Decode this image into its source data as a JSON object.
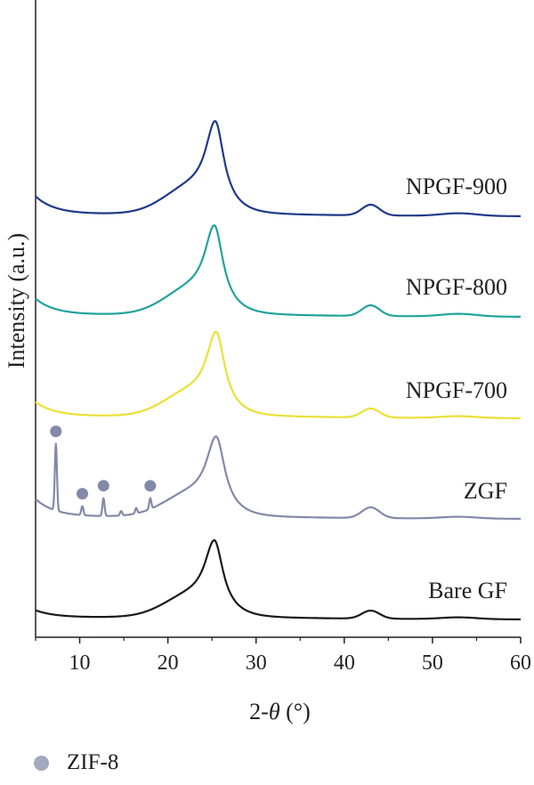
{
  "chart_data": {
    "type": "line",
    "title": "",
    "xlabel_prefix": "2-",
    "xlabel_symbol": "θ",
    "xlabel_unit": " (°)",
    "ylabel": "Intensity (a.u.)",
    "xlim": [
      5,
      60
    ],
    "x_ticks": [
      10,
      20,
      30,
      40,
      50,
      60
    ],
    "y_ticks_shown": false,
    "grid": false,
    "series": [
      {
        "name": "NPGF-900",
        "color": "#1f3a8a",
        "offset": 4,
        "peaks": [
          [
            25.4,
            1.15
          ],
          [
            43.0,
            0.12
          ],
          [
            53.0,
            0.03
          ]
        ],
        "background": 0.2,
        "end_level": 0.02
      },
      {
        "name": "NPGF-800",
        "color": "#21a39c",
        "offset": 3,
        "peaks": [
          [
            25.3,
            1.1
          ],
          [
            43.0,
            0.12
          ],
          [
            53.0,
            0.03
          ]
        ],
        "background": 0.18,
        "end_level": 0.02
      },
      {
        "name": "NPGF-700",
        "color": "#ebe035",
        "offset": 2,
        "peaks": [
          [
            25.5,
            1.05
          ],
          [
            43.0,
            0.1
          ],
          [
            53.0,
            0.02
          ]
        ],
        "background": 0.16,
        "end_level": 0.02
      },
      {
        "name": "ZGF",
        "color": "#8389a8",
        "offset": 1,
        "peaks": [
          [
            25.5,
            1.0
          ],
          [
            43.0,
            0.12
          ],
          [
            53.0,
            0.02
          ]
        ],
        "background": 0.2,
        "end_level": 0.02,
        "zif_peaks": [
          [
            7.3,
            0.75
          ],
          [
            10.3,
            0.1
          ],
          [
            12.7,
            0.2
          ],
          [
            14.7,
            0.05
          ],
          [
            16.4,
            0.06
          ],
          [
            18.0,
            0.12
          ]
        ]
      },
      {
        "name": "Bare GF",
        "color": "#1a1a1a",
        "offset": 0,
        "peaks": [
          [
            25.3,
            0.95
          ],
          [
            43.0,
            0.09
          ],
          [
            53.0,
            0.02
          ]
        ],
        "background": 0.08,
        "end_level": 0.02
      }
    ],
    "markers": [
      {
        "label": "ZIF-8",
        "series": "ZGF",
        "x": [
          7.3,
          10.3,
          12.7,
          18.0
        ],
        "color": "#8389a8"
      }
    ],
    "legend": {
      "label": "ZIF-8",
      "position": "bottom-left",
      "color": "#a3a9bf"
    }
  }
}
